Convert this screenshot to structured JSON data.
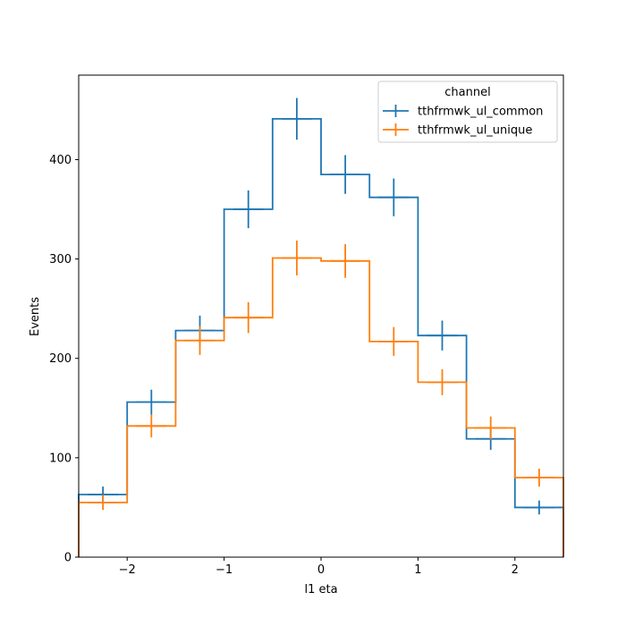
{
  "chart_data": {
    "type": "step",
    "xlabel": "l1 eta",
    "ylabel": "Events",
    "xlim": [
      -2.5,
      2.5
    ],
    "ylim": [
      0,
      485
    ],
    "grid": false,
    "legend_title": "channel",
    "legend_position": "upper-right",
    "x_ticks": [
      -2,
      -1,
      0,
      1,
      2
    ],
    "x_tick_labels": [
      "−2",
      "−1",
      "0",
      "1",
      "2"
    ],
    "y_ticks": [
      0,
      100,
      200,
      300,
      400
    ],
    "y_tick_labels": [
      "0",
      "100",
      "200",
      "300",
      "400"
    ],
    "bin_edges": [
      -2.5,
      -2.0,
      -1.5,
      -1.0,
      -0.5,
      0.0,
      0.5,
      1.0,
      1.5,
      2.0,
      2.5
    ],
    "series": [
      {
        "name": "tthfrmwk_ul_common",
        "color": "#1f77b4",
        "values": [
          63,
          156,
          228,
          350,
          441,
          385,
          362,
          223,
          119,
          50
        ],
        "errors": [
          8,
          12.5,
          15,
          19,
          21,
          19.5,
          19,
          15,
          11,
          7
        ]
      },
      {
        "name": "tthfrmwk_ul_unique",
        "color": "#ff7f0e",
        "values": [
          55,
          132,
          218,
          241,
          301,
          298,
          217,
          176,
          130,
          80
        ],
        "errors": [
          7.5,
          11.5,
          14.5,
          15.5,
          17.5,
          17,
          14.5,
          13,
          11.5,
          9
        ]
      }
    ]
  }
}
